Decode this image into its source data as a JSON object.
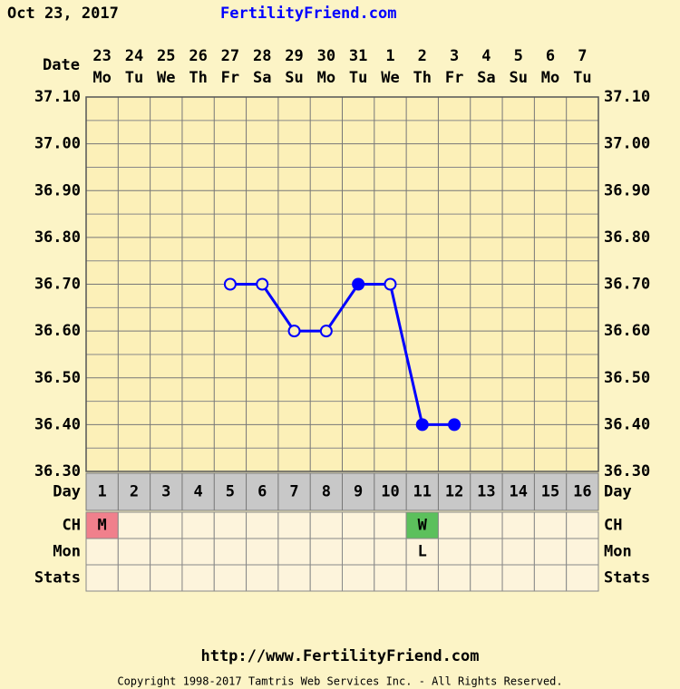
{
  "header": {
    "date": "Oct 23, 2017",
    "site": "FertilityFriend.com"
  },
  "chart_data": {
    "type": "line",
    "date_label": "Date",
    "dates": [
      "23",
      "24",
      "25",
      "26",
      "27",
      "28",
      "29",
      "30",
      "31",
      "1",
      "2",
      "3",
      "4",
      "5",
      "6",
      "7"
    ],
    "weekdays": [
      "Mo",
      "Tu",
      "We",
      "Th",
      "Fr",
      "Sa",
      "Su",
      "Mo",
      "Tu",
      "We",
      "Th",
      "Fr",
      "Sa",
      "Su",
      "Mo",
      "Tu"
    ],
    "day_label": "Day",
    "categories": [
      "1",
      "2",
      "3",
      "4",
      "5",
      "6",
      "7",
      "8",
      "9",
      "10",
      "11",
      "12",
      "13",
      "14",
      "15",
      "16"
    ],
    "series": [
      {
        "color": "#0000ff",
        "values": [
          null,
          null,
          null,
          null,
          36.7,
          36.7,
          36.6,
          36.6,
          36.7,
          36.7,
          36.4,
          36.4,
          null,
          null,
          null,
          null
        ],
        "open_markers": [
          false,
          false,
          false,
          false,
          true,
          true,
          true,
          true,
          false,
          true,
          false,
          false,
          false,
          false,
          false,
          false
        ]
      }
    ],
    "ylim": [
      36.3,
      37.1
    ],
    "yticks": [
      {
        "value": 36.3,
        "label": "36.30"
      },
      {
        "value": 36.4,
        "label": "36.40"
      },
      {
        "value": 36.5,
        "label": "36.50"
      },
      {
        "value": 36.6,
        "label": "36.60"
      },
      {
        "value": 36.7,
        "label": "36.70"
      },
      {
        "value": 36.8,
        "label": "36.80"
      },
      {
        "value": 36.9,
        "label": "36.90"
      },
      {
        "value": 37.0,
        "label": "37.00"
      },
      {
        "value": 37.1,
        "label": "37.10"
      }
    ],
    "grid": true,
    "rows": [
      {
        "label": "CH",
        "cells": [
          "M",
          null,
          null,
          null,
          null,
          null,
          null,
          null,
          null,
          null,
          "W",
          null,
          null,
          null,
          null,
          null
        ],
        "colors": [
          "#f0808c",
          null,
          null,
          null,
          null,
          null,
          null,
          null,
          null,
          null,
          "#5cc05c",
          null,
          null,
          null,
          null,
          null
        ]
      },
      {
        "label": "Mon",
        "cells": [
          null,
          null,
          null,
          null,
          null,
          null,
          null,
          null,
          null,
          null,
          "L",
          null,
          null,
          null,
          null,
          null
        ]
      },
      {
        "label": "Stats",
        "cells": [
          null,
          null,
          null,
          null,
          null,
          null,
          null,
          null,
          null,
          null,
          null,
          null,
          null,
          null,
          null,
          null
        ]
      }
    ]
  },
  "footer": {
    "url": "http://www.FertilityFriend.com",
    "copyright": "Copyright 1998-2017 Tamtris Web Services Inc. - All Rights Reserved."
  }
}
